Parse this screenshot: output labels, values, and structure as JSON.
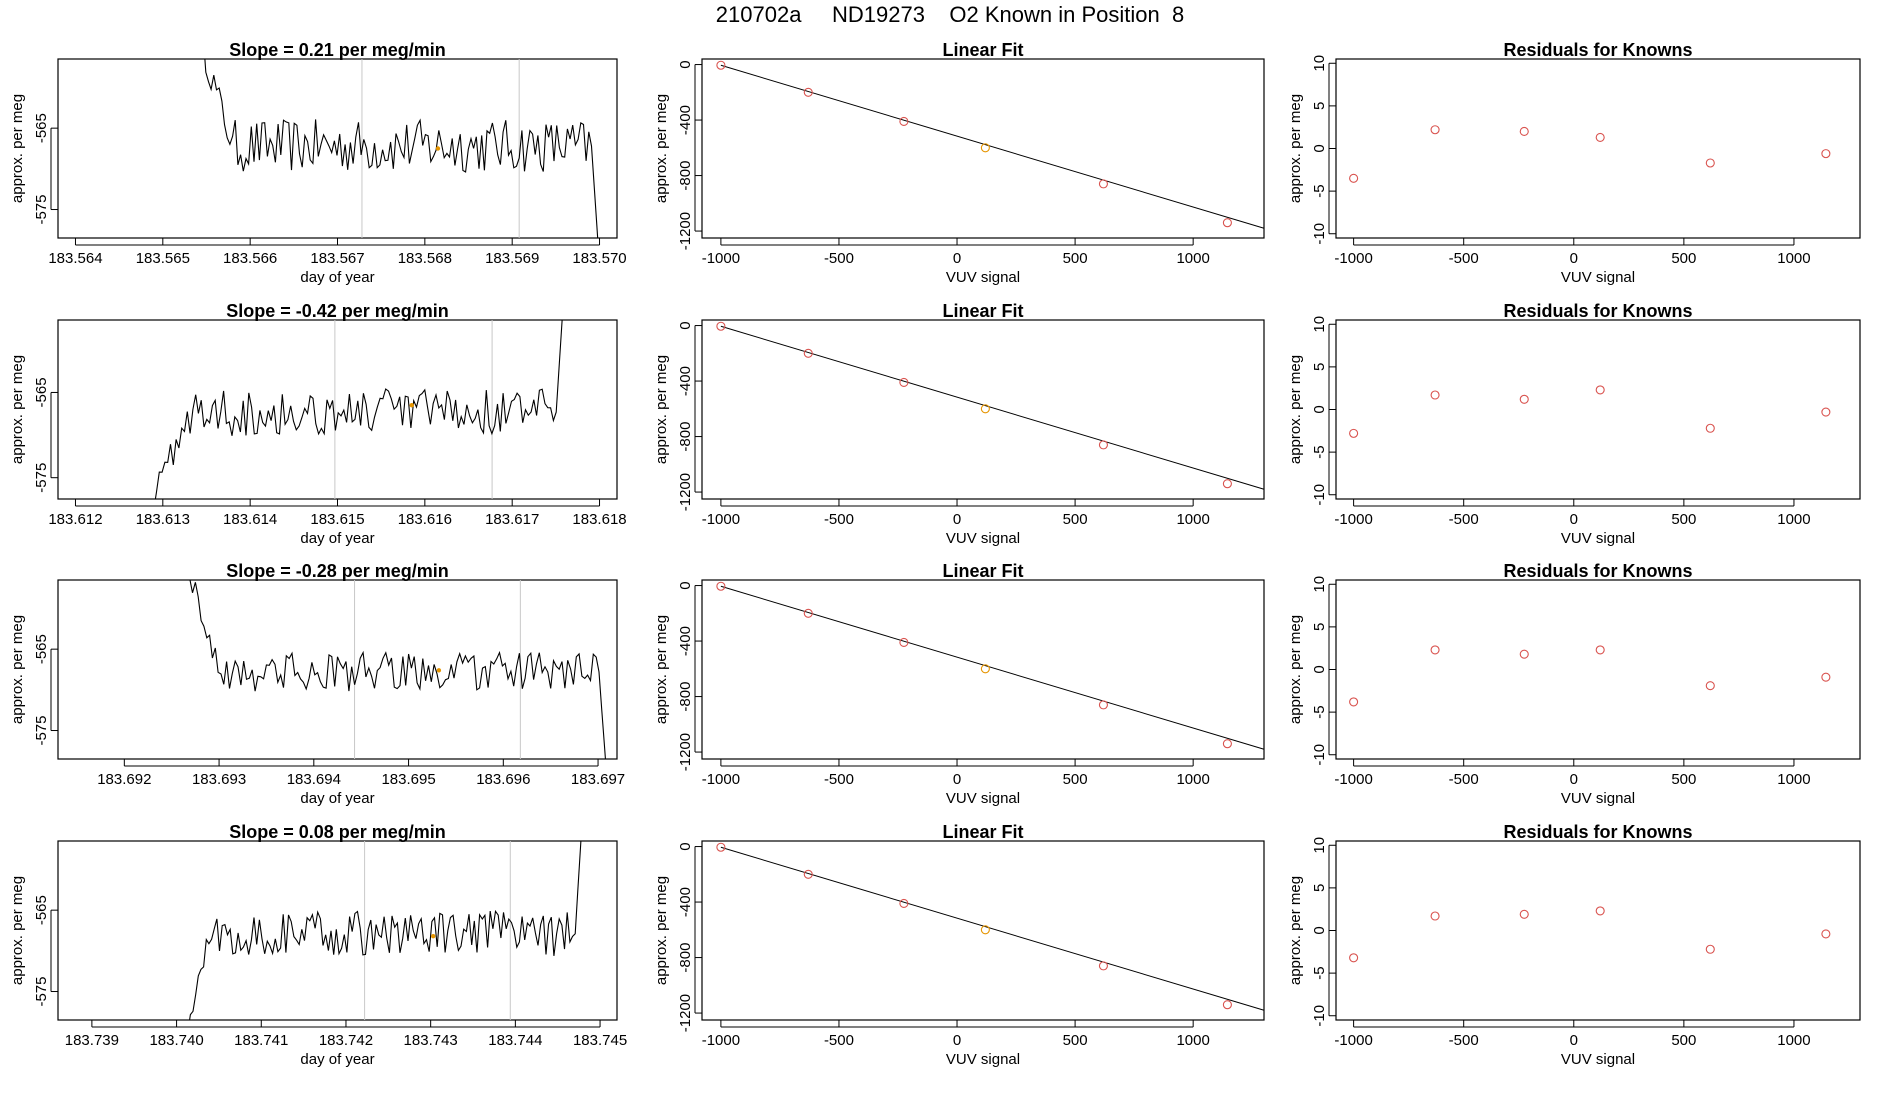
{
  "header": {
    "title": "210702a     ND19273    O2 Known in Position  8"
  },
  "colors": {
    "line": "#000000",
    "point": "#d9534f",
    "highlight": "#e69500",
    "vline": "#c8c8c8",
    "frame": "#000000"
  },
  "chart_data": {
    "rows": [
      {
        "timeseries": {
          "type": "line",
          "title": "Slope =  0.21  per meg/min",
          "xlabel": "day of year",
          "ylabel": "approx. per meg",
          "xlim": [
            183.5638,
            183.5702
          ],
          "ylim": [
            -578.5,
            -556.5
          ],
          "xticks": [
            "183.564",
            "183.565",
            "183.566",
            "183.567",
            "183.568",
            "183.569",
            "183.570"
          ],
          "xtick_values": [
            183.564,
            183.565,
            183.566,
            183.567,
            183.568,
            183.569,
            183.57
          ],
          "yticks": [
            "-565",
            "-575"
          ],
          "ytick_values": [
            -565,
            -575
          ],
          "start": 183.5654,
          "end": 183.57,
          "onset_end": 183.5658,
          "onset_from": -553,
          "level": -567.2,
          "amp": 3.3,
          "tail_to": -582,
          "vlines": [
            183.56728,
            183.56908
          ],
          "highlight": {
            "x": 183.56815,
            "y": -567.5
          }
        },
        "linear_fit": {
          "type": "scatter",
          "title": "Linear Fit",
          "xlabel": "VUV signal",
          "ylabel": "approx. per meg",
          "xlim": [
            -1080,
            1300
          ],
          "ylim": [
            -1250,
            40
          ],
          "xticks": [
            "-1000",
            "-500",
            "0",
            "500",
            "1000"
          ],
          "xtick_values": [
            -1000,
            -500,
            0,
            500,
            1000
          ],
          "yticks": [
            "0",
            "-400",
            "-800",
            "-1200"
          ],
          "ytick_values": [
            0,
            -400,
            -800,
            -1200
          ],
          "x": [
            -1000,
            -630,
            -225,
            120,
            620,
            1145
          ],
          "y": [
            -5,
            -200,
            -410,
            -600,
            -860,
            -1140
          ],
          "line": {
            "x": [
              -1000,
              1300
            ],
            "y": [
              -5,
              -1180
            ]
          },
          "highlight_index": 3
        },
        "residuals": {
          "type": "scatter",
          "title": "Residuals for Knowns",
          "xlabel": "VUV signal",
          "ylabel": "approx. per meg",
          "xlim": [
            -1080,
            1300
          ],
          "ylim": [
            -10.5,
            10.5
          ],
          "xticks": [
            "-1000",
            "-500",
            "0",
            "500",
            "1000"
          ],
          "xtick_values": [
            -1000,
            -500,
            0,
            500,
            1000
          ],
          "yticks": [
            "-10",
            "-5",
            "0",
            "5",
            "10"
          ],
          "ytick_values": [
            -10,
            -5,
            0,
            5,
            10
          ],
          "x": [
            -1000,
            -630,
            -225,
            120,
            620,
            1145
          ],
          "y": [
            -3.5,
            2.2,
            2.0,
            1.3,
            -1.7,
            -0.6
          ]
        }
      },
      {
        "timeseries": {
          "type": "line",
          "title": "Slope =  -0.42  per meg/min",
          "xlabel": "day of year",
          "ylabel": "approx. per meg",
          "xlim": [
            183.6118,
            183.6182
          ],
          "ylim": [
            -577.5,
            -556.5
          ],
          "xticks": [
            "183.612",
            "183.613",
            "183.614",
            "183.615",
            "183.616",
            "183.617",
            "183.618"
          ],
          "xtick_values": [
            183.612,
            183.613,
            183.614,
            183.615,
            183.616,
            183.617,
            183.618
          ],
          "yticks": [
            "-565",
            "-575"
          ],
          "ytick_values": [
            -565,
            -575
          ],
          "start": 183.6128,
          "end": 183.6176,
          "onset_end": 183.6133,
          "onset_from": -580,
          "level": -567.3,
          "amp": 2.8,
          "tail_to": -552,
          "vlines": [
            183.61497,
            183.61677
          ],
          "highlight": {
            "x": 183.61585,
            "y": -566.5
          }
        },
        "linear_fit": {
          "type": "scatter",
          "title": "Linear Fit",
          "xlabel": "VUV signal",
          "ylabel": "approx. per meg",
          "xlim": [
            -1080,
            1300
          ],
          "ylim": [
            -1250,
            40
          ],
          "xticks": [
            "-1000",
            "-500",
            "0",
            "500",
            "1000"
          ],
          "xtick_values": [
            -1000,
            -500,
            0,
            500,
            1000
          ],
          "yticks": [
            "0",
            "-400",
            "-800",
            "-1200"
          ],
          "ytick_values": [
            0,
            -400,
            -800,
            -1200
          ],
          "x": [
            -1000,
            -630,
            -225,
            120,
            620,
            1145
          ],
          "y": [
            -5,
            -200,
            -410,
            -600,
            -860,
            -1140
          ],
          "line": {
            "x": [
              -1000,
              1300
            ],
            "y": [
              -5,
              -1180
            ]
          },
          "highlight_index": 3
        },
        "residuals": {
          "type": "scatter",
          "title": "Residuals for Knowns",
          "xlabel": "VUV signal",
          "ylabel": "approx. per meg",
          "xlim": [
            -1080,
            1300
          ],
          "ylim": [
            -10.5,
            10.5
          ],
          "xticks": [
            "-1000",
            "-500",
            "0",
            "500",
            "1000"
          ],
          "xtick_values": [
            -1000,
            -500,
            0,
            500,
            1000
          ],
          "yticks": [
            "-10",
            "-5",
            "0",
            "5",
            "10"
          ],
          "ytick_values": [
            -10,
            -5,
            0,
            5,
            10
          ],
          "x": [
            -1000,
            -630,
            -225,
            120,
            620,
            1145
          ],
          "y": [
            -2.8,
            1.7,
            1.2,
            2.3,
            -2.2,
            -0.3
          ]
        }
      },
      {
        "timeseries": {
          "type": "line",
          "title": "Slope =  -0.28  per meg/min",
          "xlabel": "day of year",
          "ylabel": "approx. per meg",
          "xlim": [
            183.6913,
            183.6972
          ],
          "ylim": [
            -578.5,
            -556.5
          ],
          "xticks": [
            "183.692",
            "183.693",
            "183.694",
            "183.695",
            "183.696",
            "183.697"
          ],
          "xtick_values": [
            183.692,
            183.693,
            183.694,
            183.695,
            183.696,
            183.697
          ],
          "yticks": [
            "-565",
            "-575"
          ],
          "ytick_values": [
            -565,
            -575
          ],
          "start": 183.6926,
          "end": 183.6971,
          "onset_end": 183.693,
          "onset_from": -552,
          "level": -567.8,
          "amp": 2.4,
          "tail_to": -582,
          "vlines": [
            183.69443,
            183.69618
          ],
          "highlight": {
            "x": 183.69532,
            "y": -567.6
          }
        },
        "linear_fit": {
          "type": "scatter",
          "title": "Linear Fit",
          "xlabel": "VUV signal",
          "ylabel": "approx. per meg",
          "xlim": [
            -1080,
            1300
          ],
          "ylim": [
            -1250,
            40
          ],
          "xticks": [
            "-1000",
            "-500",
            "0",
            "500",
            "1000"
          ],
          "xtick_values": [
            -1000,
            -500,
            0,
            500,
            1000
          ],
          "yticks": [
            "0",
            "-400",
            "-800",
            "-1200"
          ],
          "ytick_values": [
            0,
            -400,
            -800,
            -1200
          ],
          "x": [
            -1000,
            -630,
            -225,
            120,
            620,
            1145
          ],
          "y": [
            -5,
            -200,
            -410,
            -600,
            -860,
            -1140
          ],
          "line": {
            "x": [
              -1000,
              1300
            ],
            "y": [
              -5,
              -1180
            ]
          },
          "highlight_index": 3
        },
        "residuals": {
          "type": "scatter",
          "title": "Residuals for Knowns",
          "xlabel": "VUV signal",
          "ylabel": "approx. per meg",
          "xlim": [
            -1080,
            1300
          ],
          "ylim": [
            -10.5,
            10.5
          ],
          "xticks": [
            "-1000",
            "-500",
            "0",
            "500",
            "1000"
          ],
          "xtick_values": [
            -1000,
            -500,
            0,
            500,
            1000
          ],
          "yticks": [
            "-10",
            "-5",
            "0",
            "5",
            "10"
          ],
          "ytick_values": [
            -10,
            -5,
            0,
            5,
            10
          ],
          "x": [
            -1000,
            -630,
            -225,
            120,
            620,
            1145
          ],
          "y": [
            -3.8,
            2.3,
            1.8,
            2.3,
            -1.9,
            -0.9
          ]
        }
      },
      {
        "timeseries": {
          "type": "line",
          "title": "Slope =  0.08  per meg/min",
          "xlabel": "day of year",
          "ylabel": "approx. per meg",
          "xlim": [
            183.7386,
            183.7452
          ],
          "ylim": [
            -578.5,
            -556.5
          ],
          "xticks": [
            "183.739",
            "183.740",
            "183.741",
            "183.742",
            "183.743",
            "183.744",
            "183.745"
          ],
          "xtick_values": [
            183.739,
            183.74,
            183.741,
            183.742,
            183.743,
            183.744,
            183.745
          ],
          "yticks": [
            "-565",
            "-575"
          ],
          "ytick_values": [
            -565,
            -575
          ],
          "start": 183.7401,
          "end": 183.7448,
          "onset_end": 183.7404,
          "onset_from": -581,
          "level": -567.9,
          "amp": 2.8,
          "tail_to": -552,
          "vlines": [
            183.74222,
            183.74394
          ],
          "highlight": {
            "x": 183.74303,
            "y": -568.2
          }
        },
        "linear_fit": {
          "type": "scatter",
          "title": "Linear Fit",
          "xlabel": "VUV signal",
          "ylabel": "approx. per meg",
          "xlim": [
            -1080,
            1300
          ],
          "ylim": [
            -1250,
            40
          ],
          "xticks": [
            "-1000",
            "-500",
            "0",
            "500",
            "1000"
          ],
          "xtick_values": [
            -1000,
            -500,
            0,
            500,
            1000
          ],
          "yticks": [
            "0",
            "-400",
            "-800",
            "-1200"
          ],
          "ytick_values": [
            0,
            -400,
            -800,
            -1200
          ],
          "x": [
            -1000,
            -630,
            -225,
            120,
            620,
            1145
          ],
          "y": [
            -5,
            -200,
            -410,
            -600,
            -860,
            -1140
          ],
          "line": {
            "x": [
              -1000,
              1300
            ],
            "y": [
              -5,
              -1180
            ]
          },
          "highlight_index": 3
        },
        "residuals": {
          "type": "scatter",
          "title": "Residuals for Knowns",
          "xlabel": "VUV signal",
          "ylabel": "approx. per meg",
          "xlim": [
            -1080,
            1300
          ],
          "ylim": [
            -10.5,
            10.5
          ],
          "xticks": [
            "-1000",
            "-500",
            "0",
            "500",
            "1000"
          ],
          "xtick_values": [
            -1000,
            -500,
            0,
            500,
            1000
          ],
          "yticks": [
            "-10",
            "-5",
            "0",
            "5",
            "10"
          ],
          "ytick_values": [
            -10,
            -5,
            0,
            5,
            10
          ],
          "x": [
            -1000,
            -630,
            -225,
            120,
            620,
            1145
          ],
          "y": [
            -3.2,
            1.7,
            1.9,
            2.3,
            -2.2,
            -0.4
          ]
        }
      }
    ]
  }
}
